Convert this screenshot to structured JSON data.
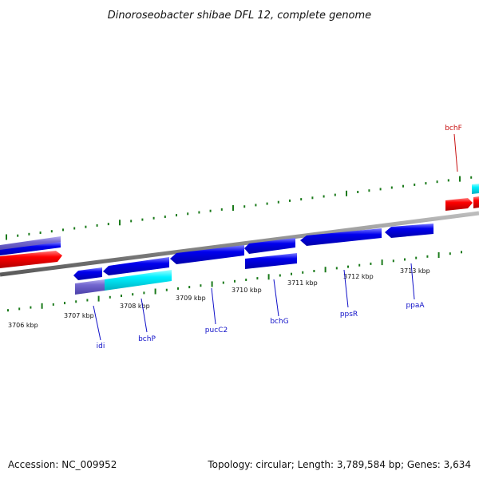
{
  "title": "Dinoroseobacter shibae DFL 12, complete genome",
  "footer": {
    "accession": "Accession: NC_009952",
    "summary": "Topology: circular; Length: 3,789,584 bp; Genes: 3,634"
  },
  "scale": {
    "ticks": [
      "3706 kbp",
      "3707 kbp",
      "3708 kbp",
      "3709 kbp",
      "3710 kbp",
      "3711 kbp",
      "3712 kbp",
      "3713 kbp"
    ]
  },
  "genes": [
    {
      "name": "idi",
      "label_color": "#1010c8"
    },
    {
      "name": "bchP",
      "label_color": "#1010c8"
    },
    {
      "name": "pucC2",
      "label_color": "#1010c8"
    },
    {
      "name": "bchG",
      "label_color": "#1010c8"
    },
    {
      "name": "ppsR",
      "label_color": "#1010c8"
    },
    {
      "name": "ppaA",
      "label_color": "#1010c8"
    },
    {
      "name": "bchF",
      "label_color": "#c81010"
    }
  ],
  "colors": {
    "reverse_gene": "#0000e0",
    "forward_gene": "#ff0000",
    "partial_gene": "#7a6fd0",
    "cyan_gene": "#00f0ff",
    "backbone": "#8a8a8a",
    "tick": "#1a7a1a",
    "reverse_label": "#1010c8",
    "forward_label": "#c81010"
  }
}
